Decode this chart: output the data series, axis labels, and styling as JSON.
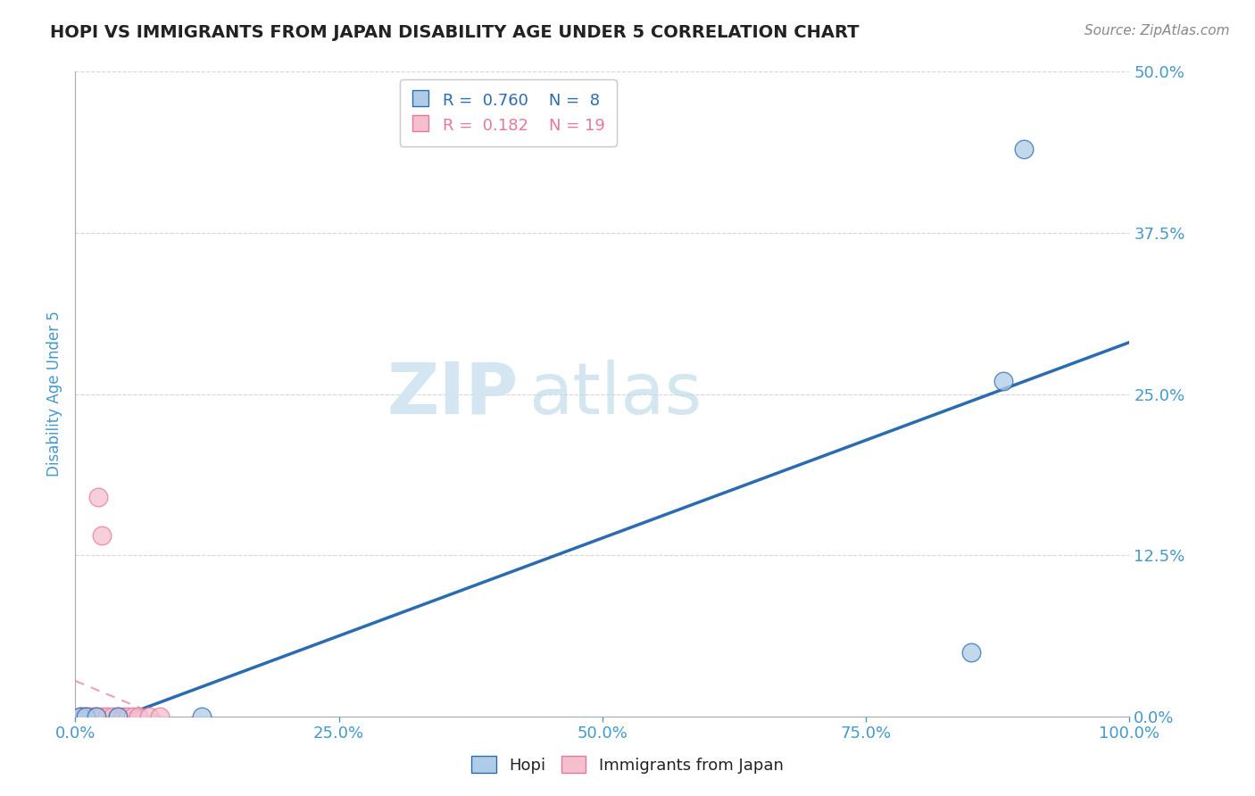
{
  "title": "HOPI VS IMMIGRANTS FROM JAPAN DISABILITY AGE UNDER 5 CORRELATION CHART",
  "source": "Source: ZipAtlas.com",
  "ylabel": "Disability Age Under 5",
  "xlim": [
    0.0,
    1.0
  ],
  "ylim": [
    0.0,
    0.5
  ],
  "yticks": [
    0.0,
    0.125,
    0.25,
    0.375,
    0.5
  ],
  "ytick_labels": [
    "0.0%",
    "12.5%",
    "25.0%",
    "37.5%",
    "50.0%"
  ],
  "xticks": [
    0.0,
    0.25,
    0.5,
    0.75,
    1.0
  ],
  "xtick_labels": [
    "0.0%",
    "25.0%",
    "50.0%",
    "75.0%",
    "100.0%"
  ],
  "hopi_r": 0.76,
  "hopi_n": 8,
  "japan_r": 0.182,
  "japan_n": 19,
  "hopi_color": "#aecce8",
  "japan_color": "#f5bfce",
  "hopi_line_color": "#2b6cb0",
  "japan_line_color": "#e8789a",
  "hopi_scatter": [
    [
      0.005,
      0.0
    ],
    [
      0.01,
      0.0
    ],
    [
      0.02,
      0.0
    ],
    [
      0.04,
      0.0
    ],
    [
      0.12,
      0.0
    ],
    [
      0.85,
      0.05
    ],
    [
      0.88,
      0.26
    ],
    [
      0.9,
      0.44
    ]
  ],
  "japan_scatter": [
    [
      0.005,
      0.0
    ],
    [
      0.008,
      0.0
    ],
    [
      0.01,
      0.0
    ],
    [
      0.012,
      0.0
    ],
    [
      0.015,
      0.0
    ],
    [
      0.018,
      0.0
    ],
    [
      0.02,
      0.0
    ],
    [
      0.025,
      0.0
    ],
    [
      0.03,
      0.0
    ],
    [
      0.035,
      0.0
    ],
    [
      0.04,
      0.0
    ],
    [
      0.045,
      0.0
    ],
    [
      0.05,
      0.0
    ],
    [
      0.055,
      0.0
    ],
    [
      0.06,
      0.0
    ],
    [
      0.07,
      0.0
    ],
    [
      0.08,
      0.0
    ],
    [
      0.022,
      0.17
    ],
    [
      0.025,
      0.14
    ]
  ],
  "watermark_zip": "ZIP",
  "watermark_atlas": "atlas",
  "background_color": "#ffffff",
  "grid_color": "#cccccc",
  "title_color": "#222222",
  "axis_label_color": "#4499cc",
  "tick_color": "#4499cc"
}
